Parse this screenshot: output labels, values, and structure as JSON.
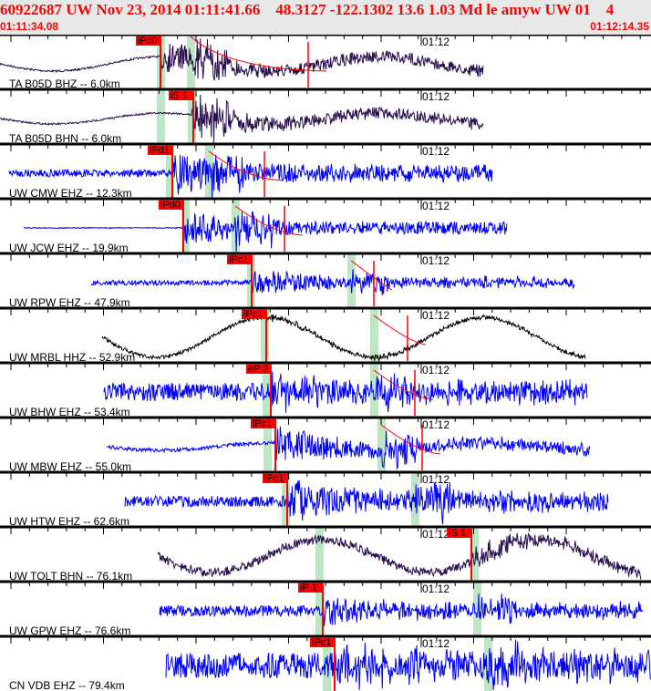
{
  "header": {
    "title": "60922687 UW Nov 23, 2014 01:11:41.66    48.3127 -122.1302 13.6 1.03 Md le amyw UW 01    4",
    "start_time": "01:11:34.08",
    "end_time": "01:12:14.35"
  },
  "time_marker": "01:12",
  "colors": {
    "header_text": "#ff0000",
    "pick_box": "#ff0000",
    "phase_band": "#bfe6c4",
    "trace_blue": "#0000ff",
    "trace_purple": "#2a0f4f",
    "trace_black": "#000000"
  },
  "traces": [
    {
      "label": "TA B05D BHZ -- 6.0km",
      "pick": "iPc0",
      "color": "#2a0f4f"
    },
    {
      "label": "TA B05D BHN -- 6.0km",
      "pick": "iS 1",
      "color": "#2a0f4f"
    },
    {
      "label": "UW CMW EHZ -- 12.3km",
      "pick": "iPd1",
      "color": "#0000ff"
    },
    {
      "label": "UW JCW EHZ -- 19.9km",
      "pick": "iPd0",
      "color": "#0000ff"
    },
    {
      "label": "UW RPW EHZ -- 47.9km",
      "pick": "iPc1",
      "color": "#0000ff"
    },
    {
      "label": "UW MRBL HHZ -- 52.9km",
      "pick": "iPc1",
      "color": "#000000"
    },
    {
      "label": "UW BHW EHZ -- 53.4km",
      "pick": "eP 2",
      "color": "#0000ff"
    },
    {
      "label": "UW MBW EHZ -- 55.0km",
      "pick": "iPc1",
      "color": "#0000ff"
    },
    {
      "label": "UW HTW EHZ -- 62.6km",
      "pick": "iPc1",
      "color": "#0000ff"
    },
    {
      "label": "UW TOLT BHN -- 76.1km",
      "pick": "iS 1",
      "color": "#2a0f4f"
    },
    {
      "label": "UW GPW EHZ -- 76.6km",
      "pick": "iP 1",
      "color": "#0000ff"
    },
    {
      "label": "CN VDB EHZ -- 79.4km",
      "pick": "iPc1",
      "color": "#0000ff"
    }
  ]
}
